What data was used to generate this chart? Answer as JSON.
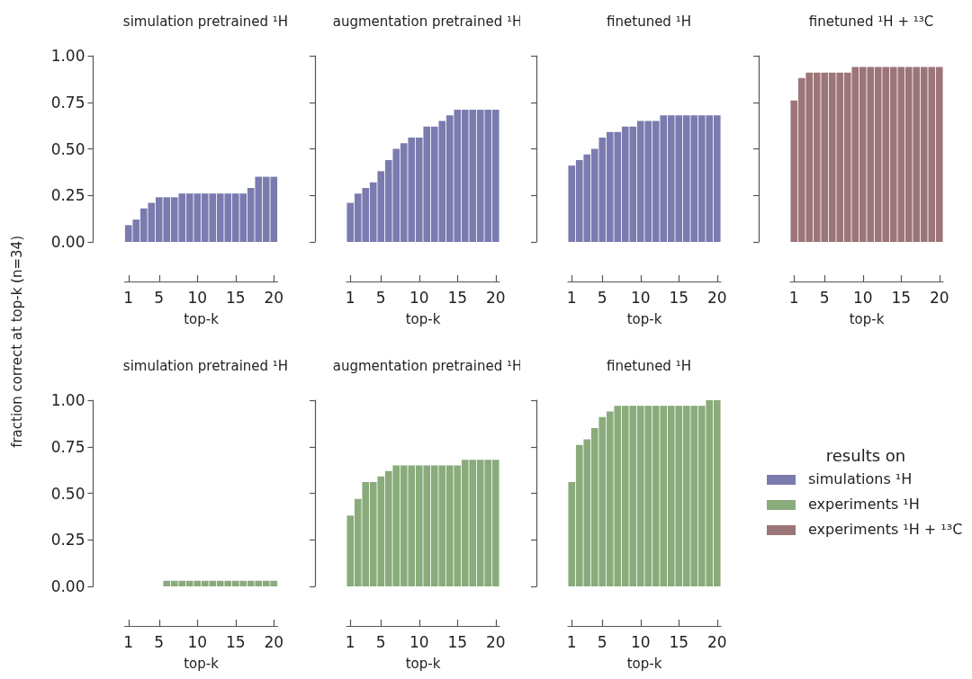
{
  "chart_data": [
    {
      "type": "bar",
      "title": "simulation pretrained ¹H",
      "xlabel": "top-k",
      "ylabel": "fraction correct at top-k (n=34)",
      "x": [
        1,
        2,
        3,
        4,
        5,
        6,
        7,
        8,
        9,
        10,
        11,
        12,
        13,
        14,
        15,
        16,
        17,
        18,
        19,
        20
      ],
      "series": [
        {
          "name": "simulations ¹H",
          "color": "#7b7bb0",
          "values": [
            0.09,
            0.12,
            0.18,
            0.21,
            0.24,
            0.24,
            0.24,
            0.26,
            0.26,
            0.26,
            0.26,
            0.26,
            0.26,
            0.26,
            0.26,
            0.26,
            0.29,
            0.35,
            0.35,
            0.35
          ]
        }
      ],
      "xlim": [
        0.5,
        20.5
      ],
      "xticks": [
        1,
        5,
        10,
        15,
        20
      ],
      "ylim": [
        0,
        1
      ],
      "yticks": [
        {
          "value": 0,
          "label": "0.00"
        },
        {
          "value": 0.25,
          "label": "0.25"
        },
        {
          "value": 0.5,
          "label": "0.50"
        },
        {
          "value": 0.75,
          "label": "0.75"
        },
        {
          "value": 1,
          "label": "1.00"
        }
      ]
    },
    {
      "type": "bar",
      "title": "augmentation pretrained ¹H",
      "xlabel": "top-k",
      "x": [
        1,
        2,
        3,
        4,
        5,
        6,
        7,
        8,
        9,
        10,
        11,
        12,
        13,
        14,
        15,
        16,
        17,
        18,
        19,
        20
      ],
      "series": [
        {
          "color": "#7b7bb0",
          "values": [
            0.21,
            0.26,
            0.29,
            0.32,
            0.38,
            0.44,
            0.5,
            0.53,
            0.56,
            0.56,
            0.62,
            0.62,
            0.65,
            0.68,
            0.71,
            0.71,
            0.71,
            0.71,
            0.71,
            0.71
          ]
        }
      ],
      "xlim": [
        0.5,
        20.5
      ],
      "xticks": [
        1,
        5,
        10,
        15,
        20
      ],
      "ylim": [
        0,
        1
      ],
      "yticks": [
        0,
        0.25,
        0.5,
        0.75,
        1
      ],
      "tick_labels": "x"
    },
    {
      "type": "bar",
      "title": "finetuned ¹H",
      "xlabel": "top-k",
      "x": [
        1,
        2,
        3,
        4,
        5,
        6,
        7,
        8,
        9,
        10,
        11,
        12,
        13,
        14,
        15,
        16,
        17,
        18,
        19,
        20
      ],
      "series": [
        {
          "color": "#7b7bb0",
          "values": [
            0.41,
            0.44,
            0.47,
            0.5,
            0.56,
            0.59,
            0.59,
            0.62,
            0.62,
            0.65,
            0.65,
            0.65,
            0.68,
            0.68,
            0.68,
            0.68,
            0.68,
            0.68,
            0.68,
            0.68
          ]
        }
      ],
      "xlim": [
        0.5,
        20.5
      ],
      "xticks": [
        1,
        5,
        10,
        15,
        20
      ],
      "ylim": [
        0,
        1
      ],
      "yticks": [
        0,
        0.25,
        0.5,
        0.75,
        1
      ],
      "tick_labels": "x"
    },
    {
      "type": "bar",
      "title": "finetuned ¹H + ¹³C",
      "xlabel": "top-k",
      "x": [
        1,
        2,
        3,
        4,
        5,
        6,
        7,
        8,
        9,
        10,
        11,
        12,
        13,
        14,
        15,
        16,
        17,
        18,
        19,
        20
      ],
      "series": [
        {
          "name": "experiments ¹H + ¹³C",
          "color": "#9c7579",
          "values": [
            0.76,
            0.88,
            0.91,
            0.91,
            0.91,
            0.91,
            0.91,
            0.91,
            0.94,
            0.94,
            0.94,
            0.94,
            0.94,
            0.94,
            0.94,
            0.94,
            0.94,
            0.94,
            0.94,
            0.94
          ]
        }
      ],
      "xlim": [
        0.5,
        20.5
      ],
      "xticks": [
        1,
        5,
        10,
        15,
        20
      ],
      "ylim": [
        0,
        1
      ],
      "yticks": [
        0,
        0.25,
        0.5,
        0.75,
        1
      ],
      "tick_labels": "x"
    },
    {
      "type": "bar",
      "title": "simulation pretrained ¹H",
      "xlabel": "top-k",
      "x": [
        1,
        2,
        3,
        4,
        5,
        6,
        7,
        8,
        9,
        10,
        11,
        12,
        13,
        14,
        15,
        16,
        17,
        18,
        19,
        20
      ],
      "series": [
        {
          "color": "#8aab7b",
          "values": [
            0,
            0,
            0,
            0,
            0,
            0.03,
            0.03,
            0.03,
            0.03,
            0.03,
            0.03,
            0.03,
            0.03,
            0.03,
            0.03,
            0.03,
            0.03,
            0.03,
            0.03,
            0.03
          ]
        }
      ],
      "xlim": [
        0.5,
        20.5
      ],
      "xticks": [
        1,
        5,
        10,
        15,
        20
      ],
      "ylim": [
        0,
        1
      ],
      "yticks": [
        {
          "value": 0,
          "label": "0.00"
        },
        {
          "value": 0.25,
          "label": "0.25"
        },
        {
          "value": 0.5,
          "label": "0.50"
        },
        {
          "value": 0.75,
          "label": "0.75"
        },
        {
          "value": 1,
          "label": "1.00"
        }
      ]
    },
    {
      "type": "bar",
      "title": "augmentation pretrained ¹H",
      "xlabel": "top-k",
      "x": [
        1,
        2,
        3,
        4,
        5,
        6,
        7,
        8,
        9,
        10,
        11,
        12,
        13,
        14,
        15,
        16,
        17,
        18,
        19,
        20
      ],
      "series": [
        {
          "color": "#8aab7b",
          "values": [
            0.38,
            0.47,
            0.56,
            0.56,
            0.59,
            0.62,
            0.65,
            0.65,
            0.65,
            0.65,
            0.65,
            0.65,
            0.65,
            0.65,
            0.65,
            0.68,
            0.68,
            0.68,
            0.68,
            0.68
          ]
        }
      ],
      "xlim": [
        0.5,
        20.5
      ],
      "xticks": [
        1,
        5,
        10,
        15,
        20
      ],
      "ylim": [
        0,
        1
      ],
      "yticks": [
        0,
        0.25,
        0.5,
        0.75,
        1
      ],
      "tick_labels": "x"
    },
    {
      "type": "bar",
      "title": "finetuned ¹H",
      "xlabel": "top-k",
      "x": [
        1,
        2,
        3,
        4,
        5,
        6,
        7,
        8,
        9,
        10,
        11,
        12,
        13,
        14,
        15,
        16,
        17,
        18,
        19,
        20
      ],
      "series": [
        {
          "name": "experiments ¹H",
          "color": "#8aab7b",
          "values": [
            0.56,
            0.76,
            0.79,
            0.85,
            0.91,
            0.94,
            0.97,
            0.97,
            0.97,
            0.97,
            0.97,
            0.97,
            0.97,
            0.97,
            0.97,
            0.97,
            0.97,
            0.97,
            1,
            1
          ]
        }
      ],
      "xlim": [
        0.5,
        20.5
      ],
      "xticks": [
        1,
        5,
        10,
        15,
        20
      ],
      "ylim": [
        0,
        1
      ],
      "yticks": [
        0,
        0.25,
        0.5,
        0.75,
        1
      ],
      "tick_labels": "x",
      "legend": "right",
      "legend_title": "results on"
    }
  ]
}
